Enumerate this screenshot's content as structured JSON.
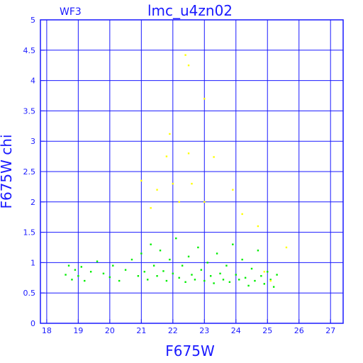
{
  "chart_data": {
    "type": "scatter",
    "title": "lmc_u4zn02",
    "subtitle": "WF3",
    "xlabel": "F675W",
    "ylabel": "F675W chi",
    "xlim": [
      17.8,
      27.4
    ],
    "ylim": [
      0,
      5
    ],
    "x_ticks": [
      "18",
      "19",
      "20",
      "21",
      "22",
      "23",
      "24",
      "25",
      "26",
      "27"
    ],
    "y_ticks": [
      "0",
      "0.5",
      "1",
      "1.5",
      "2",
      "2.5",
      "3",
      "3.5",
      "4",
      "4.5",
      "5"
    ],
    "grid": true,
    "series": [
      {
        "color": "#00ee00",
        "points": [
          [
            18.6,
            0.8
          ],
          [
            18.7,
            0.95
          ],
          [
            18.8,
            0.72
          ],
          [
            18.9,
            0.88
          ],
          [
            19.0,
            0.78
          ],
          [
            19.1,
            0.93
          ],
          [
            19.2,
            0.7
          ],
          [
            19.4,
            0.85
          ],
          [
            19.6,
            1.02
          ],
          [
            19.8,
            0.82
          ],
          [
            20.0,
            0.76
          ],
          [
            20.1,
            0.95
          ],
          [
            20.3,
            0.7
          ],
          [
            20.5,
            0.88
          ],
          [
            20.7,
            1.05
          ],
          [
            20.9,
            0.78
          ],
          [
            21.0,
            1.15
          ],
          [
            21.1,
            0.85
          ],
          [
            21.2,
            0.72
          ],
          [
            21.3,
            1.3
          ],
          [
            21.4,
            0.95
          ],
          [
            21.5,
            0.78
          ],
          [
            21.6,
            1.2
          ],
          [
            21.7,
            0.86
          ],
          [
            21.8,
            0.7
          ],
          [
            21.9,
            1.05
          ],
          [
            22.0,
            0.82
          ],
          [
            22.1,
            1.4
          ],
          [
            22.2,
            0.75
          ],
          [
            22.3,
            0.95
          ],
          [
            22.4,
            0.68
          ],
          [
            22.5,
            1.1
          ],
          [
            22.6,
            0.8
          ],
          [
            22.7,
            0.72
          ],
          [
            22.8,
            1.25
          ],
          [
            22.9,
            0.88
          ],
          [
            23.0,
            0.7
          ],
          [
            23.1,
            1.0
          ],
          [
            23.2,
            0.78
          ],
          [
            23.3,
            0.66
          ],
          [
            23.4,
            1.15
          ],
          [
            23.5,
            0.82
          ],
          [
            23.6,
            0.72
          ],
          [
            23.7,
            0.95
          ],
          [
            23.8,
            0.68
          ],
          [
            23.9,
            1.3
          ],
          [
            24.0,
            0.8
          ],
          [
            24.1,
            0.72
          ],
          [
            24.2,
            1.05
          ],
          [
            24.3,
            0.75
          ],
          [
            24.4,
            0.62
          ],
          [
            24.5,
            0.9
          ],
          [
            24.6,
            0.7
          ],
          [
            24.7,
            1.2
          ],
          [
            24.8,
            0.78
          ],
          [
            24.9,
            0.65
          ],
          [
            25.0,
            0.85
          ],
          [
            25.1,
            0.72
          ],
          [
            25.2,
            0.6
          ],
          [
            25.3,
            0.8
          ]
        ]
      },
      {
        "color": "#ffff00",
        "points": [
          [
            22.4,
            4.42
          ],
          [
            22.5,
            4.25
          ],
          [
            21.9,
            3.12
          ],
          [
            23.0,
            3.7
          ],
          [
            21.8,
            2.75
          ],
          [
            22.5,
            2.8
          ],
          [
            23.3,
            2.74
          ],
          [
            21.0,
            2.35
          ],
          [
            21.5,
            2.2
          ],
          [
            22.0,
            2.3
          ],
          [
            22.6,
            2.3
          ],
          [
            23.9,
            2.2
          ],
          [
            21.3,
            1.9
          ],
          [
            22.2,
            2.0
          ],
          [
            23.0,
            2.0
          ],
          [
            24.2,
            1.8
          ],
          [
            24.7,
            1.6
          ],
          [
            25.6,
            1.25
          ],
          [
            24.9,
            0.85
          ],
          [
            25.1,
            0.7
          ]
        ]
      }
    ]
  }
}
